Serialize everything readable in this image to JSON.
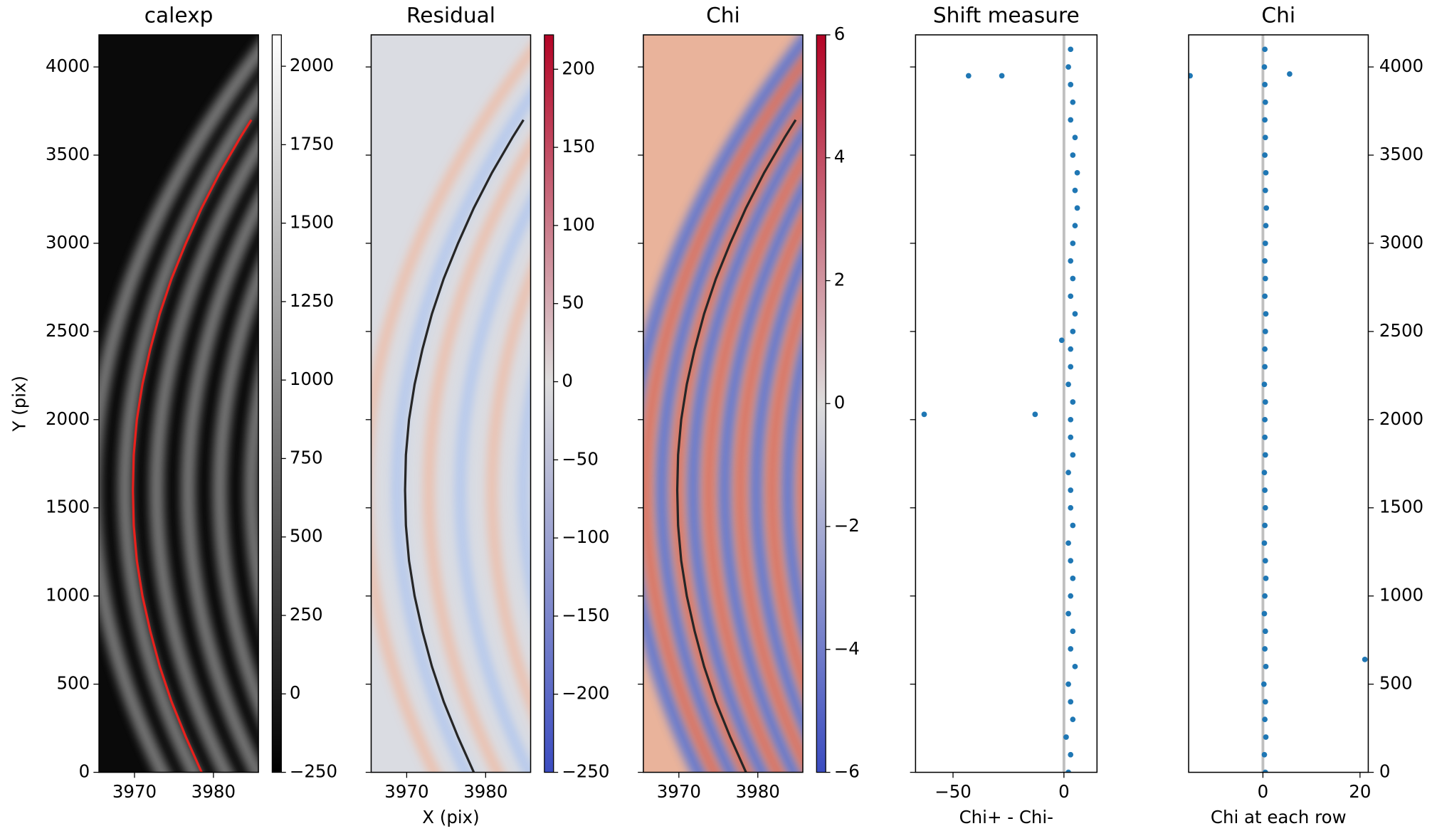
{
  "chart_data": [
    {
      "type": "heatmap",
      "title": "calexp",
      "ylabel": "Y (pix)",
      "xlim": [
        3965.5,
        3985.7
      ],
      "ylim": [
        0,
        4182
      ],
      "xticks": [
        3970,
        3980
      ],
      "yticks": [
        0,
        500,
        1000,
        1500,
        2000,
        2500,
        3000,
        3500,
        4000
      ],
      "ytick_side": "left",
      "colormap": "gray",
      "clim": [
        -250,
        2100
      ],
      "cticks": [
        {
          "value": -250,
          "label": "−250"
        },
        0,
        250,
        500,
        750,
        1000,
        1250,
        1500,
        1750,
        2000
      ],
      "series": [
        {
          "color": "#e8201c",
          "x": [
            3978.5,
            3976.5,
            3974.7,
            3973.2,
            3972.0,
            3971.0,
            3970.3,
            3969.9,
            3969.8,
            3969.9,
            3970.3,
            3971.0,
            3972.0,
            3973.2,
            3974.7,
            3976.5,
            3978.5,
            3980.8,
            3983.4,
            3984.8
          ],
          "y": [
            0,
            200,
            400,
            600,
            800,
            1000,
            1200,
            1400,
            1600,
            1800,
            2000,
            2200,
            2400,
            2600,
            2800,
            3000,
            3200,
            3400,
            3600,
            3700
          ]
        }
      ]
    },
    {
      "type": "heatmap",
      "title": "Residual",
      "xlabel": "X (pix)",
      "xlim": [
        3965.5,
        3985.7
      ],
      "ylim": [
        0,
        4182
      ],
      "xticks": [
        3970,
        3980
      ],
      "yticks": [
        0,
        500,
        1000,
        1500,
        2000,
        2500,
        3000,
        3500,
        4000
      ],
      "ytick_side": "none",
      "colormap": "coolwarm",
      "clim": [
        -250,
        222
      ],
      "cticks": [
        {
          "value": -250,
          "label": "−250"
        },
        {
          "value": -200,
          "label": "−200"
        },
        {
          "value": -150,
          "label": "−150"
        },
        {
          "value": -100,
          "label": "−100"
        },
        {
          "value": -50,
          "label": "−50"
        },
        0,
        50,
        100,
        150,
        200
      ],
      "series": [
        {
          "color": "#262626",
          "x": [
            3978.5,
            3976.5,
            3974.7,
            3973.2,
            3972.0,
            3971.0,
            3970.3,
            3969.9,
            3969.8,
            3969.9,
            3970.3,
            3971.0,
            3972.0,
            3973.2,
            3974.7,
            3976.5,
            3978.5,
            3980.8,
            3983.4,
            3984.8
          ],
          "y": [
            0,
            200,
            400,
            600,
            800,
            1000,
            1200,
            1400,
            1600,
            1800,
            2000,
            2200,
            2400,
            2600,
            2800,
            3000,
            3200,
            3400,
            3600,
            3700
          ]
        }
      ]
    },
    {
      "type": "heatmap",
      "title": "Chi",
      "xlim": [
        3965.5,
        3985.7
      ],
      "ylim": [
        0,
        4182
      ],
      "xticks": [
        3970,
        3980
      ],
      "yticks": [
        0,
        500,
        1000,
        1500,
        2000,
        2500,
        3000,
        3500,
        4000
      ],
      "ytick_side": "none",
      "colormap": "coolwarm",
      "clim": [
        -6,
        6
      ],
      "cticks": [
        {
          "value": -6,
          "label": "−6"
        },
        {
          "value": -4,
          "label": "−4"
        },
        {
          "value": -2,
          "label": "−2"
        },
        0,
        2,
        4,
        6
      ],
      "series": [
        {
          "color": "#262626",
          "x": [
            3978.5,
            3976.5,
            3974.7,
            3973.2,
            3972.0,
            3971.0,
            3970.3,
            3969.9,
            3969.8,
            3969.9,
            3970.3,
            3971.0,
            3972.0,
            3973.2,
            3974.7,
            3976.5,
            3978.5,
            3980.8,
            3983.4,
            3984.8
          ],
          "y": [
            0,
            200,
            400,
            600,
            800,
            1000,
            1200,
            1400,
            1600,
            1800,
            2000,
            2200,
            2400,
            2600,
            2800,
            3000,
            3200,
            3400,
            3600,
            3700
          ]
        }
      ]
    },
    {
      "type": "scatter",
      "title": "Shift measure",
      "xlabel": "Chi+ - Chi-",
      "xlim": [
        -66.9,
        14.9
      ],
      "ylim": [
        0,
        4182
      ],
      "xticks": [
        {
          "value": -50,
          "label": "−50"
        },
        0
      ],
      "yticks": [
        0,
        500,
        1000,
        1500,
        2000,
        2500,
        3000,
        3500,
        4000
      ],
      "ytick_side": "none",
      "reference_line": 0,
      "reference_color": "#bfbfbf",
      "series": [
        {
          "color": "#1f77b4",
          "x": [
            2,
            3,
            1,
            4,
            3,
            2,
            5,
            3,
            4,
            2,
            3,
            4,
            3,
            2,
            4,
            3,
            3,
            2,
            4,
            3,
            3,
            4,
            2,
            3,
            3,
            4,
            5,
            3,
            4,
            3,
            4,
            5,
            6,
            5,
            6,
            4,
            5,
            3,
            4,
            3,
            2,
            3,
            -43,
            -28,
            -63,
            -13,
            -1
          ],
          "y": [
            0,
            100,
            200,
            300,
            400,
            500,
            600,
            700,
            800,
            900,
            1000,
            1100,
            1200,
            1300,
            1400,
            1500,
            1600,
            1700,
            1800,
            1900,
            2000,
            2100,
            2200,
            2300,
            2400,
            2500,
            2600,
            2700,
            2800,
            2900,
            3000,
            3100,
            3200,
            3300,
            3400,
            3500,
            3600,
            3700,
            3800,
            3900,
            4000,
            4100,
            3950,
            3950,
            2030,
            2030,
            2450
          ]
        }
      ]
    },
    {
      "type": "scatter",
      "title": "Chi",
      "xlabel": "Chi at each row",
      "xlim": [
        -15.3,
        21.7
      ],
      "ylim": [
        0,
        4182
      ],
      "xticks": [
        0,
        20
      ],
      "yticks": [
        0,
        500,
        1000,
        1500,
        2000,
        2500,
        3000,
        3500,
        4000
      ],
      "ytick_side": "right",
      "reference_line": 0,
      "reference_color": "#bfbfbf",
      "series": [
        {
          "color": "#1f77b4",
          "x": [
            0.5,
            0.3,
            0.6,
            0.4,
            0.5,
            0.2,
            0.6,
            0.4,
            0.5,
            0.3,
            0.4,
            0.6,
            0.5,
            0.3,
            0.4,
            0.5,
            0.4,
            0.3,
            0.5,
            0.4,
            0.4,
            0.5,
            0.3,
            0.4,
            0.4,
            0.5,
            0.6,
            0.4,
            0.5,
            0.4,
            0.5,
            0.6,
            0.7,
            0.5,
            0.6,
            0.4,
            0.5,
            0.4,
            0.5,
            0.4,
            0.3,
            0.4,
            -15,
            5.5,
            21
          ],
          "y": [
            0,
            100,
            200,
            300,
            400,
            500,
            600,
            700,
            800,
            900,
            1000,
            1100,
            1200,
            1300,
            1400,
            1500,
            1600,
            1700,
            1800,
            1900,
            2000,
            2100,
            2200,
            2300,
            2400,
            2500,
            2600,
            2700,
            2800,
            2900,
            3000,
            3100,
            3200,
            3300,
            3400,
            3500,
            3600,
            3700,
            3800,
            3900,
            4000,
            4100,
            3950,
            3960,
            640
          ]
        }
      ]
    }
  ]
}
